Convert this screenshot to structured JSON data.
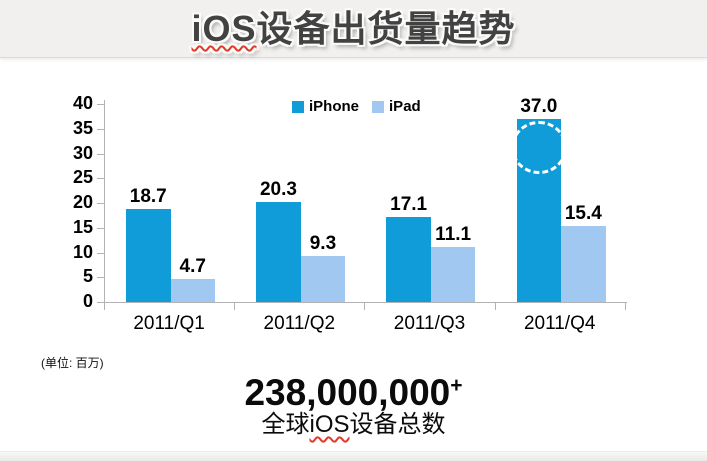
{
  "slide": {
    "title": {
      "highlight": "iOS",
      "rest": "设备出货量趋势"
    },
    "unit_note": "(单位: 百万)",
    "total": {
      "number": "238,000,000",
      "superscript": "+"
    },
    "caption": {
      "prefix": "全球",
      "highlight": "iOS",
      "suffix": "设备总数"
    }
  },
  "chart_data": {
    "type": "bar",
    "title": "iOS设备出货量趋势",
    "unit": "百万",
    "categories": [
      "2011/Q1",
      "2011/Q2",
      "2011/Q3",
      "2011/Q4"
    ],
    "series": [
      {
        "name": "iPhone",
        "color": "#0f9cd8",
        "values": [
          18.7,
          20.3,
          17.1,
          37.0
        ]
      },
      {
        "name": "iPad",
        "color": "#a0c8f0",
        "values": [
          4.7,
          9.3,
          11.1,
          15.4
        ]
      }
    ],
    "xlabel": "",
    "ylabel": "",
    "ylim": [
      0,
      40
    ],
    "ytick_step": 5,
    "grid": false,
    "legend_position": "top-center",
    "data_labels": true,
    "annotation": {
      "type": "dashed-ellipse",
      "target_category": "2011/Q4",
      "target_series": "iPhone",
      "color": "#ffffff"
    }
  }
}
